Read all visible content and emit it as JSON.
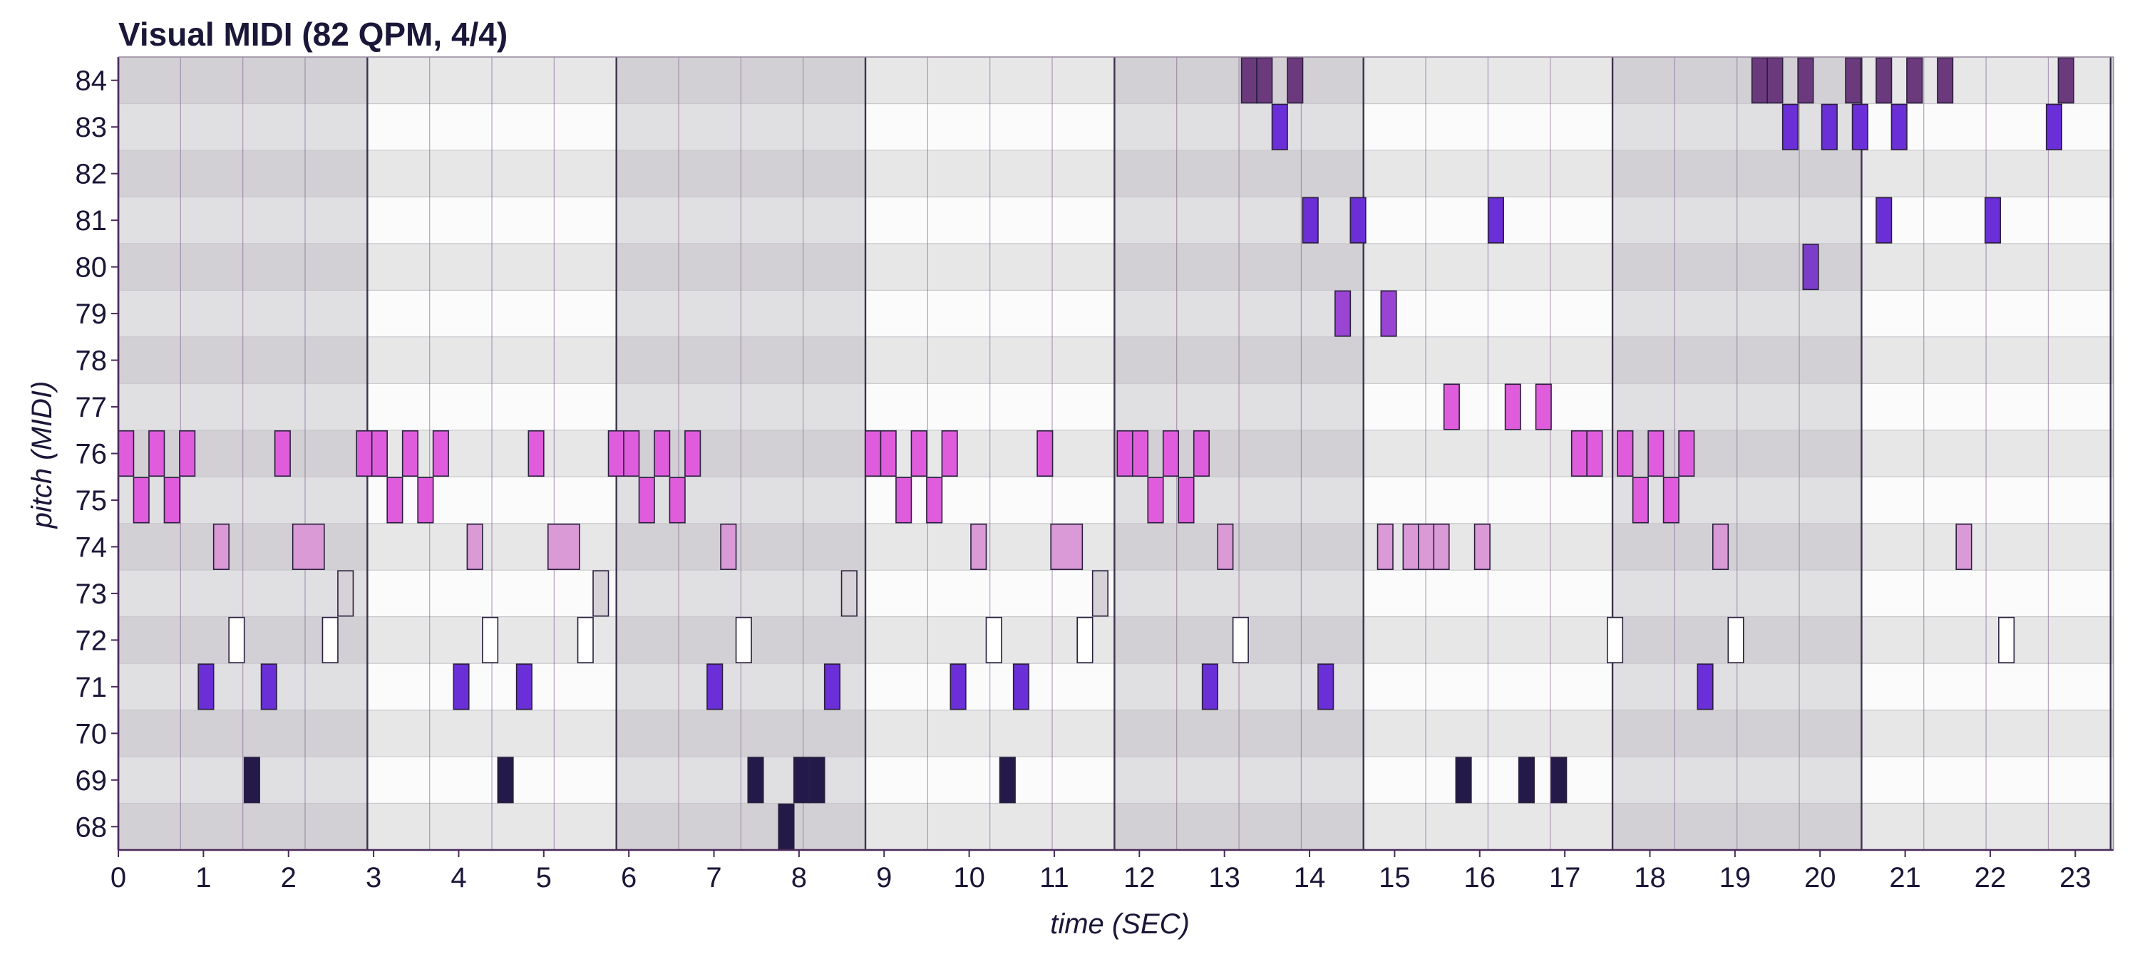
{
  "chart_data": {
    "type": "heatmap",
    "title": "Visual MIDI (82 QPM, 4/4)",
    "xlabel": "time (SEC)",
    "ylabel": "pitch (MIDI)",
    "xlim": [
      0,
      23.45
    ],
    "pitch_range": [
      68,
      84
    ],
    "x_ticks": [
      0,
      1,
      2,
      3,
      4,
      5,
      6,
      7,
      8,
      9,
      10,
      11,
      12,
      13,
      14,
      15,
      16,
      17,
      18,
      19,
      20,
      21,
      22,
      23
    ],
    "y_ticks": [
      84,
      83,
      82,
      81,
      80,
      79,
      78,
      77,
      76,
      75,
      74,
      73,
      72,
      71,
      70,
      69,
      68
    ],
    "grid": true,
    "beat_seconds": 0.7317,
    "beats_per_bar": 4,
    "colors": {
      "note_outline": "#2a1f3d",
      "bar_line": "#2a1f3d",
      "beat_line": "#7a5a8a",
      "row_line": "#c8c8cc",
      "bar_shade_dark": "#d4d2d6",
      "bar_shade_light": "#eeeeef"
    },
    "series": [
      {
        "pitch": 84,
        "color": "#6b3a7c",
        "notes": [
          [
            13.2,
            13.38
          ],
          [
            13.38,
            13.56
          ],
          [
            13.74,
            13.92
          ],
          [
            19.2,
            19.38
          ],
          [
            19.38,
            19.56
          ],
          [
            19.74,
            19.92
          ],
          [
            20.3,
            20.48
          ],
          [
            20.66,
            20.84
          ],
          [
            21.02,
            21.2
          ],
          [
            21.38,
            21.56
          ],
          [
            22.8,
            22.98
          ]
        ]
      },
      {
        "pitch": 83,
        "color": "#6a2fd6",
        "notes": [
          [
            13.56,
            13.74
          ],
          [
            19.56,
            19.74
          ],
          [
            20.02,
            20.2
          ],
          [
            20.38,
            20.56
          ],
          [
            20.84,
            21.02
          ],
          [
            22.66,
            22.84
          ]
        ]
      },
      {
        "pitch": 81,
        "color": "#6a2fd6",
        "notes": [
          [
            13.92,
            14.1
          ],
          [
            14.48,
            14.66
          ],
          [
            16.1,
            16.28
          ],
          [
            20.66,
            20.84
          ],
          [
            21.94,
            22.12
          ]
        ]
      },
      {
        "pitch": 80,
        "color": "#7c3ec9",
        "notes": [
          [
            19.8,
            19.98
          ]
        ]
      },
      {
        "pitch": 79,
        "color": "#9a44d4",
        "notes": [
          [
            14.3,
            14.48
          ],
          [
            14.84,
            15.02
          ]
        ]
      },
      {
        "pitch": 77,
        "color": "#df5ddc",
        "notes": [
          [
            15.58,
            15.76
          ],
          [
            16.3,
            16.48
          ],
          [
            16.66,
            16.84
          ]
        ]
      },
      {
        "pitch": 76,
        "color": "#df5ddc",
        "notes": [
          [
            0,
            0.18
          ],
          [
            0.36,
            0.54
          ],
          [
            0.72,
            0.9
          ],
          [
            1.84,
            2.02
          ],
          [
            2.8,
            2.98
          ],
          [
            2.98,
            3.16
          ],
          [
            3.34,
            3.52
          ],
          [
            3.7,
            3.88
          ],
          [
            4.82,
            5
          ],
          [
            5.76,
            5.94
          ],
          [
            5.94,
            6.12
          ],
          [
            6.3,
            6.48
          ],
          [
            6.66,
            6.84
          ],
          [
            8.78,
            8.96
          ],
          [
            8.96,
            9.14
          ],
          [
            9.32,
            9.5
          ],
          [
            9.68,
            9.86
          ],
          [
            10.8,
            10.98
          ],
          [
            11.74,
            11.92
          ],
          [
            11.92,
            12.1
          ],
          [
            12.28,
            12.46
          ],
          [
            12.64,
            12.82
          ],
          [
            17.08,
            17.26
          ],
          [
            17.26,
            17.44
          ],
          [
            17.62,
            17.8
          ],
          [
            17.98,
            18.16
          ],
          [
            18.34,
            18.52
          ]
        ]
      },
      {
        "pitch": 75,
        "color": "#df5ddc",
        "notes": [
          [
            0.18,
            0.36
          ],
          [
            0.54,
            0.72
          ],
          [
            3.16,
            3.34
          ],
          [
            3.52,
            3.7
          ],
          [
            6.12,
            6.3
          ],
          [
            6.48,
            6.66
          ],
          [
            9.14,
            9.32
          ],
          [
            9.5,
            9.68
          ],
          [
            12.1,
            12.28
          ],
          [
            12.46,
            12.64
          ],
          [
            17.8,
            17.98
          ],
          [
            18.16,
            18.34
          ]
        ]
      },
      {
        "pitch": 74,
        "color": "#d99ad6",
        "notes": [
          [
            1.12,
            1.3
          ],
          [
            2.05,
            2.42
          ],
          [
            4.1,
            4.28
          ],
          [
            5.05,
            5.42
          ],
          [
            7.08,
            7.26
          ],
          [
            10.02,
            10.2
          ],
          [
            10.96,
            11.33
          ],
          [
            12.92,
            13.1
          ],
          [
            14.8,
            14.98
          ],
          [
            15.1,
            15.28
          ],
          [
            15.28,
            15.46
          ],
          [
            15.46,
            15.64
          ],
          [
            15.94,
            16.12
          ],
          [
            18.74,
            18.92
          ],
          [
            21.6,
            21.78
          ]
        ]
      },
      {
        "pitch": 73,
        "color": "#d6d2d8",
        "notes": [
          [
            2.58,
            2.76
          ],
          [
            5.58,
            5.76
          ],
          [
            8.5,
            8.68
          ],
          [
            11.45,
            11.63
          ]
        ]
      },
      {
        "pitch": 72,
        "color": "#ffffff",
        "notes": [
          [
            1.3,
            1.48
          ],
          [
            2.4,
            2.58
          ],
          [
            4.28,
            4.46
          ],
          [
            5.4,
            5.58
          ],
          [
            7.26,
            7.44
          ],
          [
            10.2,
            10.38
          ],
          [
            11.27,
            11.45
          ],
          [
            13.1,
            13.28
          ],
          [
            17.5,
            17.68
          ],
          [
            18.92,
            19.1
          ],
          [
            22.1,
            22.28
          ]
        ]
      },
      {
        "pitch": 71,
        "color": "#6a2fd6",
        "notes": [
          [
            0.94,
            1.12
          ],
          [
            1.68,
            1.86
          ],
          [
            3.94,
            4.12
          ],
          [
            4.68,
            4.86
          ],
          [
            6.92,
            7.1
          ],
          [
            8.3,
            8.48
          ],
          [
            9.78,
            9.96
          ],
          [
            10.52,
            10.7
          ],
          [
            12.74,
            12.92
          ],
          [
            14.1,
            14.28
          ],
          [
            18.56,
            18.74
          ]
        ]
      },
      {
        "pitch": 69,
        "color": "#241a4a",
        "notes": [
          [
            1.48,
            1.66
          ],
          [
            4.46,
            4.64
          ],
          [
            7.4,
            7.58
          ],
          [
            7.94,
            8.12
          ],
          [
            8.12,
            8.3
          ],
          [
            10.36,
            10.54
          ],
          [
            15.72,
            15.9
          ],
          [
            16.46,
            16.64
          ],
          [
            16.84,
            17.02
          ]
        ]
      },
      {
        "pitch": 68,
        "color": "#241a4a",
        "notes": [
          [
            7.76,
            7.94
          ]
        ]
      }
    ]
  }
}
